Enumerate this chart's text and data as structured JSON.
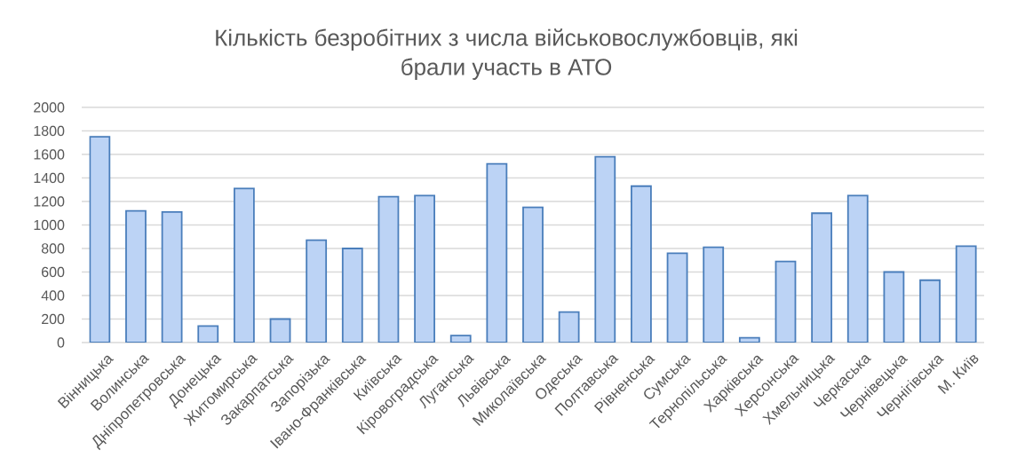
{
  "chart_data": {
    "type": "bar",
    "title": "Кількість безробітних з числа військовослужбовців, які брали участь в АТО",
    "categories": [
      "Вінницька",
      "Волинська",
      "Дніпропетровська",
      "Донецька",
      "Житомирська",
      "Закарпатська",
      "Запорізька",
      "Івано-Франківська",
      "Київська",
      "Кіровоградська",
      "Луганська",
      "Львівська",
      "Миколаївська",
      "Одеська",
      "Полтавська",
      "Рівненська",
      "Сумська",
      "Тернопільська",
      "Харківська",
      "Херсонська",
      "Хмельницька",
      "Черкаська",
      "Чернівецька",
      "Чернігівська",
      "М. Київ"
    ],
    "values": [
      1750,
      1120,
      1110,
      140,
      1310,
      200,
      870,
      800,
      1240,
      1250,
      60,
      1520,
      1150,
      260,
      1580,
      1330,
      760,
      810,
      40,
      690,
      1100,
      1250,
      600,
      530,
      820
    ],
    "color": "#bcd3f5",
    "ylim": [
      0,
      2000
    ],
    "yticks": [
      0,
      200,
      400,
      600,
      800,
      1000,
      1200,
      1400,
      1600,
      1800,
      2000
    ],
    "grid": "y"
  }
}
